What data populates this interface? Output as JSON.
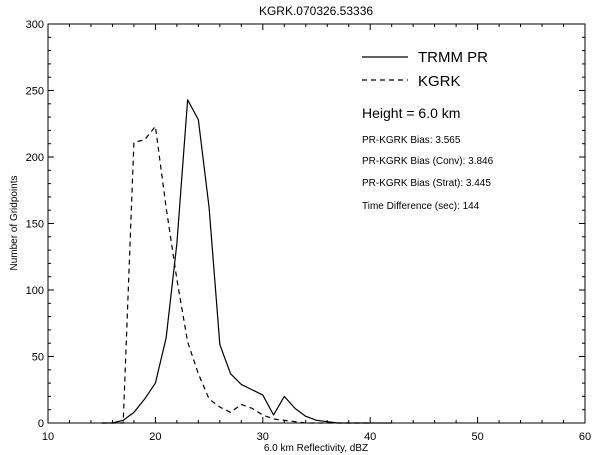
{
  "chart_data": {
    "type": "line",
    "title": "KGRK.070326.53336",
    "xlabel": "6.0 km Reflectivity, dBZ",
    "ylabel": "Number of Gridpoints",
    "xlim": [
      10,
      60
    ],
    "ylim": [
      0,
      300
    ],
    "xticks": [
      10,
      20,
      30,
      40,
      50,
      60
    ],
    "yticks": [
      0,
      50,
      100,
      150,
      200,
      250,
      300
    ],
    "xtick_labels": [
      "10",
      "20",
      "30",
      "40",
      "50",
      "60"
    ],
    "ytick_labels": [
      "0",
      "50",
      "100",
      "150",
      "200",
      "250",
      "300"
    ],
    "grid": false,
    "legend_position": "top-right",
    "series": [
      {
        "name": "TRMM PR",
        "style": "solid",
        "color": "#000000",
        "x": [
          15,
          16,
          17,
          18,
          19,
          20,
          21,
          22,
          23,
          24,
          25,
          26,
          27,
          28,
          29,
          30,
          31,
          32,
          33,
          34,
          35,
          36,
          37,
          38,
          39,
          40,
          41,
          42
        ],
        "y": [
          0,
          0,
          2,
          8,
          18,
          30,
          64,
          135,
          243,
          228,
          162,
          59,
          37,
          29,
          25,
          21,
          6,
          20,
          11,
          5,
          2,
          1,
          0,
          0,
          0,
          0,
          0,
          0
        ]
      },
      {
        "name": "KGRK",
        "style": "dashed",
        "color": "#000000",
        "x": [
          15,
          16,
          17,
          18,
          19,
          20,
          21,
          22,
          23,
          24,
          25,
          26,
          27,
          28,
          29,
          30,
          31,
          32,
          33,
          34,
          35,
          36,
          37,
          38,
          39,
          40
        ],
        "y": [
          0,
          0,
          0,
          211,
          213,
          223,
          162,
          108,
          61,
          37,
          18,
          12,
          8,
          14,
          11,
          6,
          3,
          2,
          1,
          0,
          0,
          0,
          0,
          0,
          0,
          0
        ]
      }
    ],
    "annotations": {
      "height": "Height = 6.0 km",
      "stats": [
        "PR-KGRK Bias: 3.565",
        "PR-KGRK Bias (Conv): 3.846",
        "PR-KGRK Bias (Strat): 3.445",
        "Time Difference (sec): 144"
      ]
    }
  }
}
